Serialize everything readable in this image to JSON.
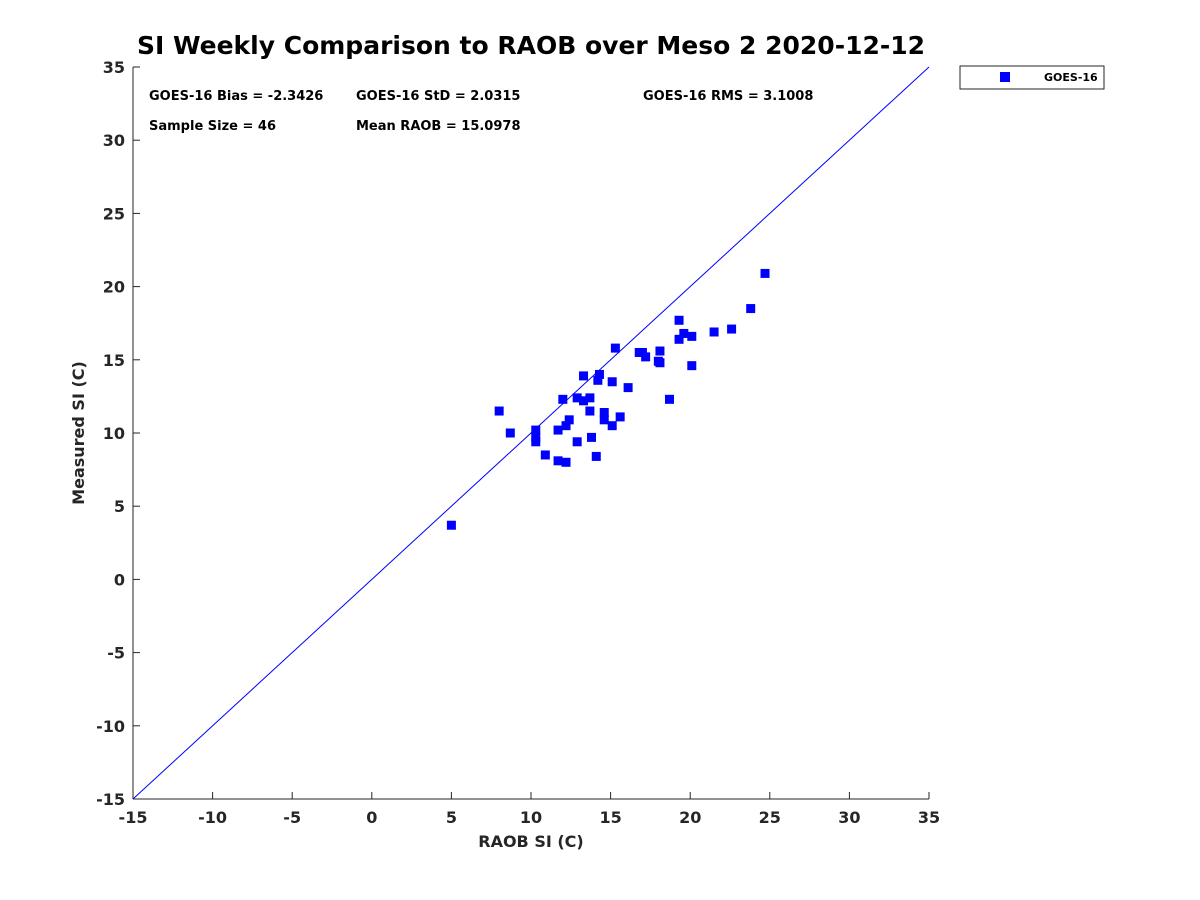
{
  "chart_data": {
    "type": "scatter",
    "title": "SI Weekly Comparison to RAOB over Meso 2 2020-12-12",
    "xlabel": "RAOB SI (C)",
    "ylabel": "Measured SI (C)",
    "xlim": [
      -15,
      35
    ],
    "ylim": [
      -15,
      35
    ],
    "xticks": [
      -15,
      -10,
      -5,
      0,
      5,
      10,
      15,
      20,
      25,
      30,
      35
    ],
    "yticks": [
      -15,
      -10,
      -5,
      0,
      5,
      10,
      15,
      20,
      25,
      30,
      35
    ],
    "reference_line": {
      "x": [
        -15,
        35
      ],
      "y": [
        -15,
        35
      ],
      "color": "#0000ff"
    },
    "legend": {
      "position": "top-right-outside",
      "entries": [
        "GOES-16"
      ]
    },
    "stats": {
      "bias": "GOES-16 Bias = -2.3426",
      "std": "GOES-16 StD = 2.0315",
      "rms": "GOES-16 RMS = 3.1008",
      "sample": "Sample Size = 46",
      "mean": "Mean RAOB = 15.0978"
    },
    "series": [
      {
        "name": "GOES-16",
        "color": "#0000ff",
        "marker": "square",
        "points": [
          [
            5.0,
            3.7
          ],
          [
            8.0,
            11.5
          ],
          [
            8.7,
            10.0
          ],
          [
            10.3,
            10.2
          ],
          [
            10.3,
            9.7
          ],
          [
            10.3,
            9.4
          ],
          [
            10.9,
            8.5
          ],
          [
            11.7,
            10.2
          ],
          [
            11.7,
            8.1
          ],
          [
            12.0,
            12.3
          ],
          [
            12.2,
            8.0
          ],
          [
            12.2,
            10.5
          ],
          [
            12.4,
            10.9
          ],
          [
            12.9,
            12.4
          ],
          [
            12.9,
            9.4
          ],
          [
            13.3,
            12.2
          ],
          [
            13.3,
            13.9
          ],
          [
            13.7,
            12.4
          ],
          [
            13.7,
            11.5
          ],
          [
            13.8,
            9.7
          ],
          [
            14.1,
            8.4
          ],
          [
            14.2,
            13.6
          ],
          [
            14.3,
            14.0
          ],
          [
            14.6,
            11.4
          ],
          [
            14.6,
            10.9
          ],
          [
            15.1,
            13.5
          ],
          [
            15.1,
            10.5
          ],
          [
            15.3,
            15.8
          ],
          [
            15.6,
            11.1
          ],
          [
            16.1,
            13.1
          ],
          [
            16.8,
            15.5
          ],
          [
            17.0,
            15.5
          ],
          [
            17.2,
            15.2
          ],
          [
            18.0,
            14.9
          ],
          [
            18.1,
            15.6
          ],
          [
            18.1,
            14.8
          ],
          [
            18.7,
            12.3
          ],
          [
            19.3,
            17.7
          ],
          [
            19.3,
            16.4
          ],
          [
            19.6,
            16.8
          ],
          [
            20.1,
            16.6
          ],
          [
            20.1,
            14.6
          ],
          [
            21.5,
            16.9
          ],
          [
            22.6,
            17.1
          ],
          [
            23.8,
            18.5
          ],
          [
            24.7,
            20.9
          ]
        ]
      }
    ]
  }
}
